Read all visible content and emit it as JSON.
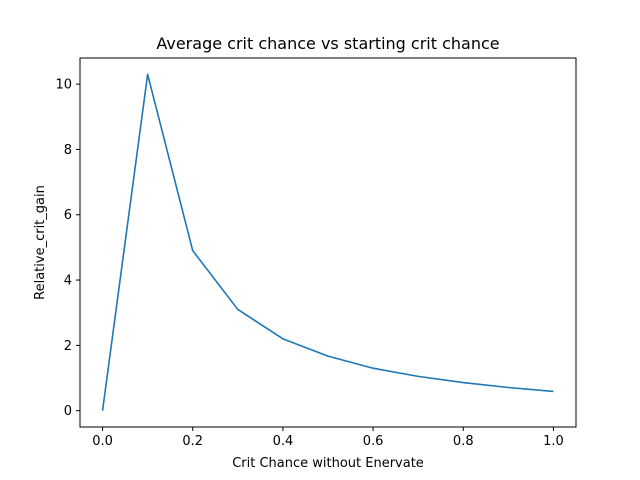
{
  "chart_data": {
    "type": "line",
    "title": "Average crit chance vs starting crit chance",
    "xlabel": "Crit Chance without Enervate",
    "ylabel": "Relative_crit_gain",
    "xlim": [
      -0.05,
      1.05
    ],
    "ylim": [
      -0.5,
      10.8
    ],
    "xticks": [
      0.0,
      0.2,
      0.4,
      0.6,
      0.8,
      1.0
    ],
    "xtick_labels": [
      "0.0",
      "0.2",
      "0.4",
      "0.6",
      "0.8",
      "1.0"
    ],
    "yticks": [
      0,
      2,
      4,
      6,
      8,
      10
    ],
    "ytick_labels": [
      "0",
      "2",
      "4",
      "6",
      "8",
      "10"
    ],
    "grid": false,
    "series": [
      {
        "color": "#1f77b4",
        "x": [
          0.0,
          0.1,
          0.2,
          0.3,
          0.4,
          0.5,
          0.6,
          0.7,
          0.8,
          0.9,
          1.0
        ],
        "y": [
          0.0,
          10.3,
          4.9,
          3.1,
          2.2,
          1.67,
          1.3,
          1.05,
          0.86,
          0.71,
          0.59
        ]
      }
    ]
  }
}
